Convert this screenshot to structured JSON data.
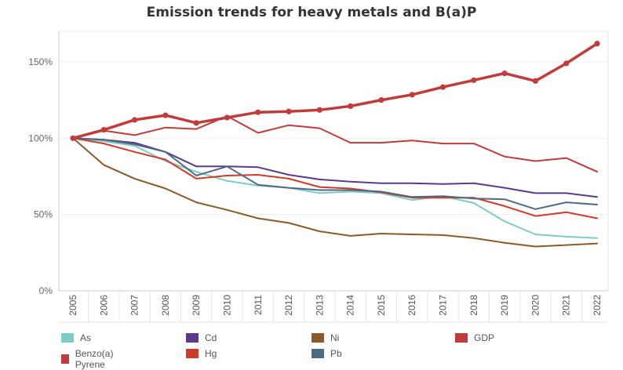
{
  "chart_data": {
    "type": "line",
    "title": "Emission trends for heavy metals and B(a)P",
    "xlabel": "",
    "ylabel": "",
    "ylim": [
      0,
      170
    ],
    "y_ticks": [
      "0%",
      "50%",
      "100%",
      "150%"
    ],
    "y_tick_values": [
      0,
      50,
      100,
      150
    ],
    "x": [
      "2005",
      "2006",
      "2007",
      "2008",
      "2009",
      "2010",
      "2011",
      "2012",
      "2013",
      "2014",
      "2015",
      "2016",
      "2017",
      "2018",
      "2019",
      "2020",
      "2021",
      "2022"
    ],
    "grid": true,
    "legend_position": "bottom",
    "series": [
      {
        "name": "As",
        "color": "#7ecdc4",
        "width": 2,
        "markers": false,
        "values": [
          100,
          98,
          95,
          85,
          78,
          72,
          69,
          67.5,
          64,
          65,
          64,
          59.5,
          62,
          57.5,
          45.5,
          37,
          35.5,
          34.5
        ]
      },
      {
        "name": "Cd",
        "color": "#5b3a8c",
        "width": 2,
        "markers": false,
        "values": [
          100,
          99,
          97,
          91,
          81.5,
          81.5,
          81,
          76,
          73,
          71.5,
          70.5,
          70.5,
          70,
          70.5,
          67.5,
          64,
          64,
          61.5
        ]
      },
      {
        "name": "Ni",
        "color": "#8b5a2b",
        "width": 2,
        "markers": false,
        "values": [
          100,
          82.5,
          73.5,
          67,
          58,
          53,
          47.5,
          44.5,
          39,
          36,
          37.5,
          37,
          36.5,
          34.5,
          31.5,
          29,
          30,
          31
        ]
      },
      {
        "name": "GDP",
        "color": "#c23b3b",
        "width": 3.5,
        "markers": true,
        "values": [
          100,
          105.5,
          112,
          115,
          110,
          113.5,
          117,
          117.5,
          118.5,
          121,
          125,
          128.5,
          133.5,
          138,
          142.5,
          137.5,
          149,
          162
        ]
      },
      {
        "name": "Benzo(a) Pyrene",
        "color": "#c23b3b",
        "width": 2,
        "markers": false,
        "values": [
          100,
          105,
          102,
          107,
          106,
          114.5,
          103.5,
          108.5,
          106.5,
          97,
          97,
          98.5,
          96.5,
          96.5,
          88,
          85,
          87,
          78
        ]
      },
      {
        "name": "Hg",
        "color": "#d03a2a",
        "width": 2,
        "markers": false,
        "values": [
          100,
          96.5,
          91,
          86,
          73.5,
          75.5,
          76,
          73.5,
          68,
          67,
          64.5,
          61,
          61,
          61,
          55.5,
          49,
          51.5,
          47.5
        ]
      },
      {
        "name": "Pb",
        "color": "#4e6a82",
        "width": 2,
        "markers": false,
        "values": [
          100,
          99,
          96,
          91,
          75.5,
          81.5,
          69.5,
          67.5,
          66,
          66,
          65,
          61.5,
          62,
          60.5,
          60,
          53.5,
          58,
          56.5
        ]
      }
    ]
  },
  "legend": [
    {
      "name": "As",
      "color": "#7ecdc4"
    },
    {
      "name": "Cd",
      "color": "#5b3a8c"
    },
    {
      "name": "Ni",
      "color": "#8b5a2b"
    },
    {
      "name": "GDP",
      "color": "#c23b3b"
    },
    {
      "name": "Benzo(a) Pyrene",
      "color": "#c23b3b"
    },
    {
      "name": "Hg",
      "color": "#d03a2a"
    },
    {
      "name": "Pb",
      "color": "#4e6a82"
    }
  ]
}
